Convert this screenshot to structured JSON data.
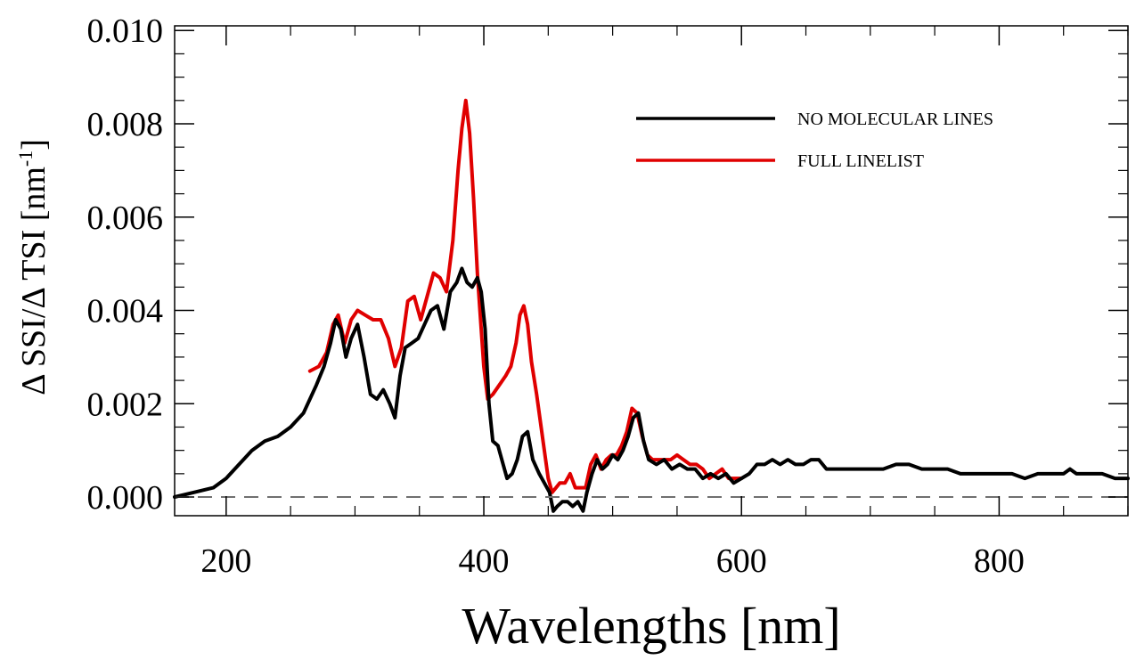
{
  "chart_data": {
    "type": "line",
    "title": "",
    "xlabel": "Wavelengths [nm]",
    "ylabel": {
      "base": "Δ SSI/Δ TSI [nm",
      "superscript": "-1",
      "close": "]"
    },
    "xlim": [
      160,
      900
    ],
    "ylim": [
      -0.0004,
      0.0101
    ],
    "x_ticks": [
      200,
      400,
      600,
      800
    ],
    "x_tick_labels": [
      "200",
      "400",
      "600",
      "800"
    ],
    "y_ticks": [
      0.0,
      0.002,
      0.004,
      0.006,
      0.008,
      0.01
    ],
    "y_tick_labels": [
      "0.000",
      "0.002",
      "0.004",
      "0.006",
      "0.008",
      "0.010"
    ],
    "grid": false,
    "reference_line": {
      "y": 0.0,
      "style": "dashed",
      "color": "#707070"
    },
    "legend_position": "top-right",
    "legend": [
      {
        "label": "NO MOLECULAR LINES",
        "color": "#000000"
      },
      {
        "label": "FULL LINELIST",
        "color": "#e00000"
      }
    ],
    "series": [
      {
        "name": "FULL LINELIST",
        "color": "#e00000",
        "x": [
          265,
          272,
          278,
          283,
          287,
          292,
          297,
          302,
          308,
          314,
          320,
          326,
          331,
          336,
          341,
          346,
          351,
          356,
          361,
          366,
          371,
          376,
          380,
          383,
          386,
          389,
          392,
          395,
          398,
          400,
          403,
          407,
          412,
          417,
          421,
          425,
          428,
          431,
          434,
          437,
          441,
          446,
          450,
          453,
          456,
          459,
          463,
          467,
          471,
          475,
          479,
          483,
          487,
          491,
          495,
          499,
          503,
          507,
          511,
          515,
          519,
          523,
          527,
          531,
          535,
          540,
          545,
          550,
          555,
          560,
          565,
          570,
          575,
          580,
          585,
          590,
          595,
          600
        ],
        "y": [
          0.0027,
          0.0028,
          0.0031,
          0.0037,
          0.0039,
          0.0033,
          0.0038,
          0.004,
          0.0039,
          0.0038,
          0.0038,
          0.0034,
          0.0028,
          0.0032,
          0.0042,
          0.0043,
          0.0038,
          0.0043,
          0.0048,
          0.0047,
          0.0044,
          0.0055,
          0.007,
          0.0079,
          0.0085,
          0.0078,
          0.0064,
          0.0048,
          0.0036,
          0.0028,
          0.0021,
          0.0022,
          0.0024,
          0.0026,
          0.0028,
          0.0033,
          0.0039,
          0.0041,
          0.0037,
          0.0029,
          0.0022,
          0.0012,
          0.0004,
          0.0001,
          0.0002,
          0.0003,
          0.0003,
          0.0005,
          0.0002,
          0.0002,
          0.0002,
          0.0007,
          0.0009,
          0.0006,
          0.0008,
          0.0009,
          0.0009,
          0.0011,
          0.0014,
          0.0019,
          0.0018,
          0.0013,
          0.0009,
          0.0008,
          0.0008,
          0.0008,
          0.0008,
          0.0009,
          0.0008,
          0.0007,
          0.0007,
          0.0006,
          0.0004,
          0.0005,
          0.0006,
          0.0004,
          0.0004,
          0.0004
        ]
      },
      {
        "name": "NO MOLECULAR LINES",
        "color": "#000000",
        "x": [
          160,
          175,
          190,
          200,
          210,
          220,
          230,
          240,
          250,
          260,
          270,
          276,
          281,
          285,
          289,
          293,
          297,
          302,
          307,
          312,
          317,
          322,
          327,
          331,
          335,
          339,
          344,
          349,
          354,
          359,
          364,
          369,
          374,
          379,
          383,
          387,
          391,
          395,
          398,
          401,
          404,
          407,
          411,
          415,
          418,
          422,
          426,
          430,
          434,
          438,
          443,
          447,
          451,
          454,
          457,
          461,
          465,
          469,
          473,
          477,
          480,
          484,
          488,
          492,
          496,
          500,
          504,
          508,
          512,
          516,
          520,
          524,
          528,
          534,
          540,
          546,
          552,
          558,
          564,
          570,
          576,
          582,
          588,
          594,
          600,
          606,
          612,
          618,
          624,
          630,
          636,
          642,
          648,
          654,
          660,
          666,
          672,
          678,
          684,
          690,
          700,
          710,
          720,
          730,
          740,
          750,
          760,
          770,
          780,
          790,
          800,
          810,
          820,
          830,
          840,
          850,
          855,
          860,
          870,
          880,
          890,
          900
        ],
        "y": [
          0.0,
          0.0001,
          0.0002,
          0.0004,
          0.0007,
          0.001,
          0.0012,
          0.0013,
          0.0015,
          0.0018,
          0.0024,
          0.0028,
          0.0033,
          0.0038,
          0.0036,
          0.003,
          0.0034,
          0.0037,
          0.003,
          0.0022,
          0.0021,
          0.0023,
          0.002,
          0.0017,
          0.0026,
          0.0032,
          0.0033,
          0.0034,
          0.0037,
          0.004,
          0.0041,
          0.0036,
          0.0044,
          0.0046,
          0.0049,
          0.0046,
          0.0045,
          0.0047,
          0.0044,
          0.0036,
          0.002,
          0.0012,
          0.0011,
          0.0007,
          0.0004,
          0.0005,
          0.0008,
          0.0013,
          0.0014,
          0.0008,
          0.0005,
          0.0003,
          0.0001,
          -0.0003,
          -0.0002,
          -0.0001,
          -0.0001,
          -0.0002,
          -0.0001,
          -0.0003,
          0.0001,
          0.0005,
          0.0008,
          0.0006,
          0.0007,
          0.0009,
          0.0008,
          0.001,
          0.0013,
          0.0017,
          0.0018,
          0.0012,
          0.0008,
          0.0007,
          0.0008,
          0.0006,
          0.0007,
          0.0006,
          0.0006,
          0.0004,
          0.0005,
          0.0004,
          0.0005,
          0.0003,
          0.0004,
          0.0005,
          0.0007,
          0.0007,
          0.0008,
          0.0007,
          0.0008,
          0.0007,
          0.0007,
          0.0008,
          0.0008,
          0.0006,
          0.0006,
          0.0006,
          0.0006,
          0.0006,
          0.0006,
          0.0006,
          0.0007,
          0.0007,
          0.0006,
          0.0006,
          0.0006,
          0.0005,
          0.0005,
          0.0005,
          0.0005,
          0.0005,
          0.0004,
          0.0005,
          0.0005,
          0.0005,
          0.0006,
          0.0005,
          0.0005,
          0.0005,
          0.0004,
          0.0004
        ]
      }
    ]
  }
}
